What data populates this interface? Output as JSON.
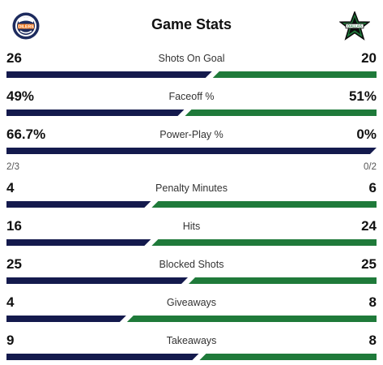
{
  "header": {
    "title": "Game Stats",
    "home_team_logo": "oilers-logo-icon",
    "away_team_logo": "stars-logo-icon"
  },
  "colors": {
    "home": "#141a4d",
    "away": "#1f7a3a"
  },
  "stats": [
    {
      "key": "shots-on-goal",
      "label": "Shots On Goal",
      "home": "26",
      "away": "20",
      "home_share": 0.5652
    },
    {
      "key": "faceoff-pct",
      "label": "Faceoff %",
      "home": "49%",
      "away": "51%",
      "home_share": 0.49
    },
    {
      "key": "power-play-pct",
      "label": "Power-Play %",
      "home": "66.7%",
      "away": "0%",
      "home_share": 1.0,
      "home_sub": "2/3",
      "away_sub": "0/2"
    },
    {
      "key": "penalty-minutes",
      "label": "Penalty Minutes",
      "home": "4",
      "away": "6",
      "home_share": 0.4
    },
    {
      "key": "hits",
      "label": "Hits",
      "home": "16",
      "away": "24",
      "home_share": 0.4
    },
    {
      "key": "blocked-shots",
      "label": "Blocked Shots",
      "home": "25",
      "away": "25",
      "home_share": 0.5
    },
    {
      "key": "giveaways",
      "label": "Giveaways",
      "home": "4",
      "away": "8",
      "home_share": 0.3333
    },
    {
      "key": "takeaways",
      "label": "Takeaways",
      "home": "9",
      "away": "8",
      "home_share": 0.5294
    }
  ]
}
